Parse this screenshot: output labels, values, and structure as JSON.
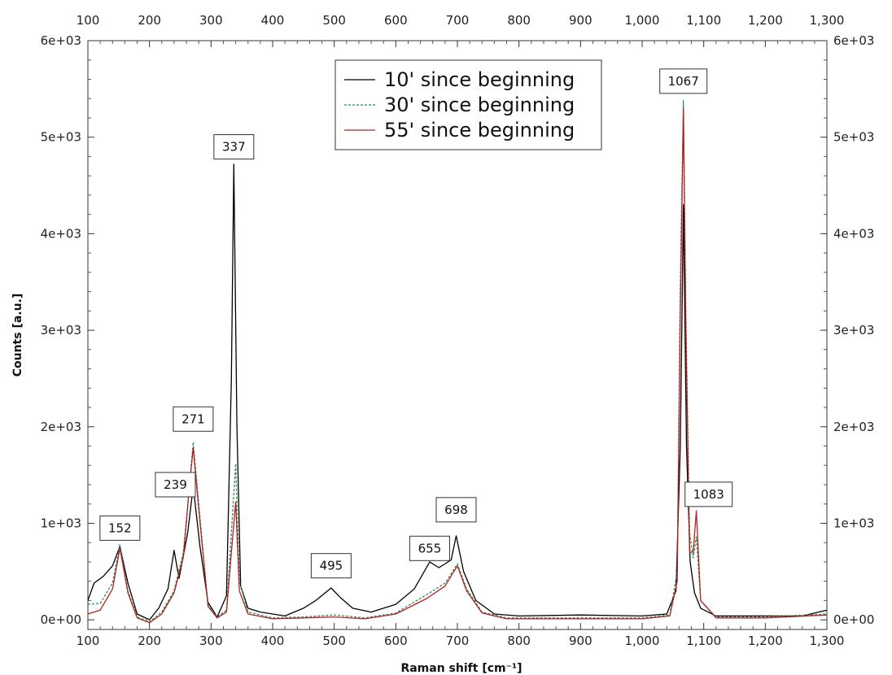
{
  "chart_data": {
    "type": "line",
    "xlabel": "Raman shift [cm⁻¹]",
    "ylabel": "Counts [a.u.]",
    "xlim": [
      100,
      1300
    ],
    "ylim": [
      -100,
      6000
    ],
    "x_ticks": [
      100,
      200,
      300,
      400,
      500,
      600,
      700,
      800,
      900,
      1000,
      1100,
      1200,
      1300
    ],
    "x_tick_labels": [
      "100",
      "200",
      "300",
      "400",
      "500",
      "600",
      "700",
      "800",
      "900",
      "1,000",
      "1,100",
      "1,200",
      "1,300"
    ],
    "y_ticks": [
      0,
      1000,
      2000,
      3000,
      4000,
      5000,
      6000
    ],
    "y_tick_labels": [
      "0e+00",
      "1e+03",
      "2e+03",
      "3e+03",
      "4e+03",
      "5e+03",
      "6e+03"
    ],
    "top_axis": true,
    "right_axis": true,
    "grid": false,
    "legend_position": "top-center",
    "series": [
      {
        "name": "10' since beginning",
        "color": "#000000",
        "dash": "solid",
        "points": [
          [
            100,
            200
          ],
          [
            110,
            380
          ],
          [
            125,
            450
          ],
          [
            140,
            560
          ],
          [
            152,
            760
          ],
          [
            165,
            380
          ],
          [
            180,
            60
          ],
          [
            200,
            0
          ],
          [
            215,
            120
          ],
          [
            230,
            320
          ],
          [
            240,
            720
          ],
          [
            248,
            430
          ],
          [
            262,
            900
          ],
          [
            271,
            1380
          ],
          [
            282,
            760
          ],
          [
            295,
            180
          ],
          [
            310,
            30
          ],
          [
            325,
            250
          ],
          [
            333,
            2500
          ],
          [
            337,
            4720
          ],
          [
            342,
            2000
          ],
          [
            348,
            350
          ],
          [
            360,
            120
          ],
          [
            380,
            80
          ],
          [
            420,
            40
          ],
          [
            450,
            120
          ],
          [
            470,
            200
          ],
          [
            495,
            330
          ],
          [
            510,
            230
          ],
          [
            530,
            120
          ],
          [
            560,
            80
          ],
          [
            600,
            160
          ],
          [
            630,
            320
          ],
          [
            655,
            600
          ],
          [
            670,
            540
          ],
          [
            690,
            620
          ],
          [
            698,
            870
          ],
          [
            710,
            500
          ],
          [
            730,
            200
          ],
          [
            760,
            60
          ],
          [
            800,
            40
          ],
          [
            900,
            50
          ],
          [
            1000,
            40
          ],
          [
            1040,
            60
          ],
          [
            1055,
            300
          ],
          [
            1062,
            1800
          ],
          [
            1067,
            4300
          ],
          [
            1072,
            1800
          ],
          [
            1078,
            600
          ],
          [
            1085,
            280
          ],
          [
            1095,
            120
          ],
          [
            1120,
            40
          ],
          [
            1200,
            40
          ],
          [
            1260,
            40
          ],
          [
            1300,
            100
          ]
        ]
      },
      {
        "name": "30' since beginning",
        "color": "#2e8b57",
        "dash": "dashed",
        "points": [
          [
            100,
            160
          ],
          [
            120,
            170
          ],
          [
            140,
            380
          ],
          [
            152,
            780
          ],
          [
            165,
            300
          ],
          [
            180,
            30
          ],
          [
            200,
            -20
          ],
          [
            220,
            80
          ],
          [
            240,
            300
          ],
          [
            255,
            700
          ],
          [
            265,
            1400
          ],
          [
            271,
            1840
          ],
          [
            280,
            1200
          ],
          [
            295,
            150
          ],
          [
            310,
            30
          ],
          [
            325,
            100
          ],
          [
            333,
            900
          ],
          [
            340,
            1620
          ],
          [
            346,
            400
          ],
          [
            360,
            80
          ],
          [
            400,
            20
          ],
          [
            450,
            30
          ],
          [
            500,
            50
          ],
          [
            550,
            20
          ],
          [
            600,
            70
          ],
          [
            650,
            260
          ],
          [
            680,
            380
          ],
          [
            700,
            580
          ],
          [
            715,
            320
          ],
          [
            740,
            80
          ],
          [
            780,
            20
          ],
          [
            900,
            20
          ],
          [
            1000,
            20
          ],
          [
            1045,
            50
          ],
          [
            1057,
            500
          ],
          [
            1062,
            3500
          ],
          [
            1067,
            5380
          ],
          [
            1071,
            3200
          ],
          [
            1077,
            900
          ],
          [
            1083,
            640
          ],
          [
            1088,
            860
          ],
          [
            1095,
            200
          ],
          [
            1120,
            30
          ],
          [
            1200,
            30
          ],
          [
            1300,
            60
          ]
        ]
      },
      {
        "name": "55' since beginning",
        "color": "#b22222",
        "dash": "solid",
        "points": [
          [
            100,
            60
          ],
          [
            120,
            100
          ],
          [
            140,
            320
          ],
          [
            152,
            740
          ],
          [
            165,
            280
          ],
          [
            180,
            20
          ],
          [
            200,
            -30
          ],
          [
            220,
            60
          ],
          [
            240,
            280
          ],
          [
            255,
            650
          ],
          [
            265,
            1400
          ],
          [
            271,
            1780
          ],
          [
            280,
            1150
          ],
          [
            295,
            140
          ],
          [
            310,
            20
          ],
          [
            325,
            80
          ],
          [
            333,
            700
          ],
          [
            340,
            1220
          ],
          [
            346,
            300
          ],
          [
            360,
            60
          ],
          [
            400,
            10
          ],
          [
            450,
            20
          ],
          [
            500,
            30
          ],
          [
            550,
            10
          ],
          [
            600,
            60
          ],
          [
            650,
            220
          ],
          [
            680,
            350
          ],
          [
            700,
            560
          ],
          [
            715,
            300
          ],
          [
            740,
            70
          ],
          [
            780,
            10
          ],
          [
            900,
            10
          ],
          [
            1000,
            10
          ],
          [
            1045,
            40
          ],
          [
            1057,
            400
          ],
          [
            1062,
            3200
          ],
          [
            1067,
            5300
          ],
          [
            1071,
            3000
          ],
          [
            1077,
            700
          ],
          [
            1083,
            700
          ],
          [
            1088,
            1130
          ],
          [
            1095,
            200
          ],
          [
            1120,
            20
          ],
          [
            1200,
            20
          ],
          [
            1300,
            50
          ]
        ]
      }
    ],
    "annotations": [
      {
        "text": "152",
        "x": 152,
        "y": 950
      },
      {
        "text": "239",
        "x": 242,
        "y": 1400
      },
      {
        "text": "271",
        "x": 271,
        "y": 2080
      },
      {
        "text": "337",
        "x": 337,
        "y": 4900
      },
      {
        "text": "495",
        "x": 495,
        "y": 560
      },
      {
        "text": "655",
        "x": 655,
        "y": 740
      },
      {
        "text": "698",
        "x": 698,
        "y": 1140
      },
      {
        "text": "1067",
        "x": 1067,
        "y": 5580
      },
      {
        "text": "1083",
        "x": 1108,
        "y": 1300
      }
    ]
  }
}
